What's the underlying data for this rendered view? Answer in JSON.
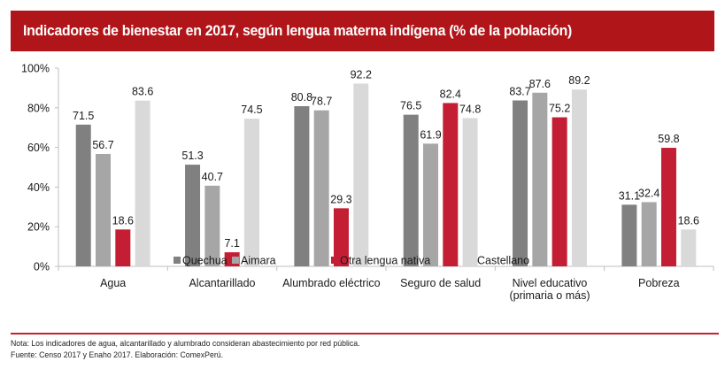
{
  "chart_data": {
    "type": "bar",
    "title": "Indicadores de bienestar en 2017, según lengua materna indígena (% de la población)",
    "xlabel": "",
    "ylabel": "",
    "ylim": [
      0,
      100
    ],
    "yticks": [
      "0%",
      "20%",
      "40%",
      "60%",
      "80%",
      "100%"
    ],
    "ytick_values": [
      0,
      20,
      40,
      60,
      80,
      100
    ],
    "grid": false,
    "legend_position": "bottom",
    "categories": [
      [
        "Agua"
      ],
      [
        "Alcantarillado"
      ],
      [
        "Alumbrado eléctrico"
      ],
      [
        "Seguro de salud"
      ],
      [
        "Nivel educativo",
        "(primaria o más)"
      ],
      [
        "Pobreza"
      ]
    ],
    "series": [
      {
        "name": "Quechua",
        "color": "#808080",
        "values": [
          71.5,
          51.3,
          80.8,
          76.5,
          83.7,
          31.1
        ]
      },
      {
        "name": "Aimara",
        "color": "#a6a6a6",
        "values": [
          56.7,
          40.7,
          78.7,
          61.9,
          87.6,
          32.4
        ]
      },
      {
        "name": "Otra lengua nativa",
        "color": "#c41e34",
        "values": [
          18.6,
          7.1,
          29.3,
          82.4,
          75.2,
          59.8
        ]
      },
      {
        "name": "Castellano",
        "color": "#d9d9d9",
        "values": [
          83.6,
          74.5,
          92.2,
          74.8,
          89.2,
          18.6
        ]
      }
    ]
  },
  "notes": {
    "nota": "Nota: Los indicadores de agua, alcantarillado y alumbrado consideran abastecimiento por red pública.",
    "fuente": "Fuente: Censo 2017 y Enaho 2017. Elaboración: ComexPerú."
  }
}
